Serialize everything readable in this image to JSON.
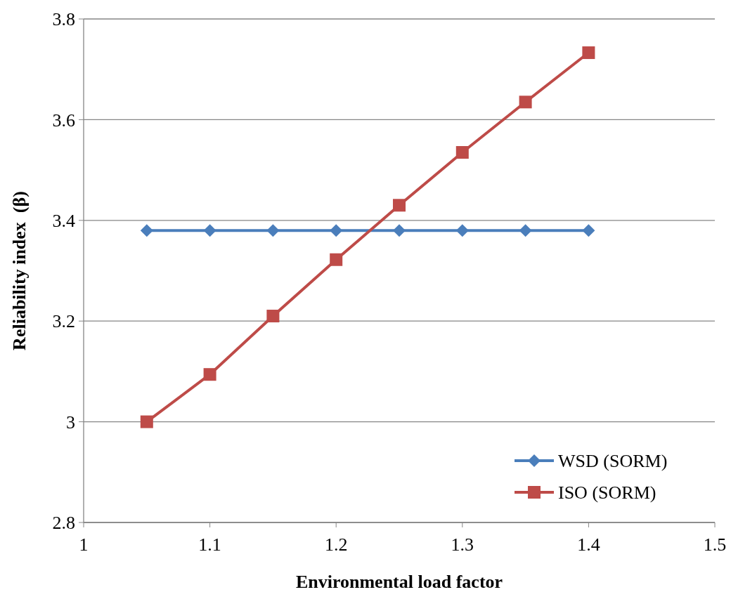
{
  "chart_data": {
    "type": "line",
    "xlabel": "Environmental load factor",
    "ylabel": "Reliability index  (β)",
    "x": [
      1.05,
      1.1,
      1.15,
      1.2,
      1.25,
      1.3,
      1.35,
      1.4
    ],
    "series": [
      {
        "name": "WSD (SORM)",
        "color": "#4a7ebb",
        "marker": "diamond",
        "values": [
          3.38,
          3.38,
          3.38,
          3.38,
          3.38,
          3.38,
          3.38,
          3.38
        ]
      },
      {
        "name": "ISO (SORM)",
        "color": "#be4b48",
        "marker": "square",
        "values": [
          3.0,
          3.094,
          3.21,
          3.322,
          3.43,
          3.535,
          3.635,
          3.733
        ]
      }
    ],
    "xlim": [
      1,
      1.5
    ],
    "xticks": [
      1,
      1.1,
      1.2,
      1.3,
      1.4,
      1.5
    ],
    "ylim": [
      2.8,
      3.8
    ],
    "yticks": [
      2.8,
      3,
      3.2,
      3.4,
      3.6,
      3.8
    ],
    "grid": "y",
    "legend": "bottom right",
    "line_style": "solid"
  }
}
